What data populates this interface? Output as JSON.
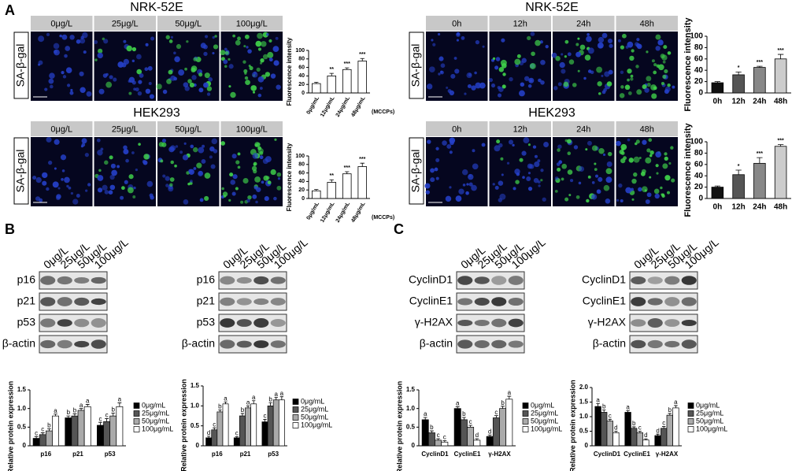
{
  "panel_labels": [
    "A",
    "B",
    "C"
  ],
  "fluorescence_panels": [
    {
      "title": "NRK-52E",
      "label": "SA-β-gal",
      "columns": [
        "0μg/L",
        "25μg/L",
        "50μg/L",
        "100μg/L"
      ]
    },
    {
      "title": "NRK-52E",
      "label": "SA-β-gal",
      "columns": [
        "0h",
        "12h",
        "24h",
        "48h"
      ]
    },
    {
      "title": "HEK293",
      "label": "SA-β-gal",
      "columns": [
        "0μg/L",
        "25μg/L",
        "50μg/L",
        "100μg/L"
      ]
    },
    {
      "title": "HEK293",
      "label": "SA-β-gal",
      "columns": [
        "0h",
        "12h",
        "24h",
        "48h"
      ]
    }
  ],
  "blots": [
    {
      "columns": [
        "0μg/L",
        "25μg/L",
        "50μg/L",
        "100μg/L"
      ],
      "rows": [
        "p16",
        "p21",
        "p53",
        "β-actin"
      ]
    },
    {
      "columns": [
        "0μg/L",
        "25μg/L",
        "50μg/L",
        "100μg/L"
      ],
      "rows": [
        "p16",
        "p21",
        "p53",
        "β-actin"
      ]
    },
    {
      "columns": [
        "0μg/L",
        "25μg/L",
        "50μg/L",
        "100μg/L"
      ],
      "rows": [
        "CyclinD1",
        "CyclinE1",
        "γ-H2AX",
        "β-actin"
      ]
    },
    {
      "columns": [
        "0μg/L",
        "25μg/L",
        "50μg/L",
        "100μg/L"
      ],
      "rows": [
        "CyclinD1",
        "CyclinE1",
        "γ-H2AX",
        "β-actin"
      ]
    }
  ],
  "chart_data": [
    {
      "type": "bar",
      "ylabel": "Fluorescence intensity",
      "xlabel": "(MCCPs)",
      "categories": [
        "0μg/mL",
        "12μg/mL",
        "24μg/mL",
        "48μg/mL"
      ],
      "values": [
        22,
        40,
        55,
        75
      ],
      "errors": [
        3,
        6,
        4,
        6
      ],
      "colors": [
        "#ffffff",
        "#ffffff",
        "#ffffff",
        "#ffffff"
      ],
      "significance": [
        null,
        "**",
        "***",
        "***"
      ],
      "ylim": [
        0,
        100
      ],
      "yticks": [
        0,
        20,
        40,
        60,
        80,
        100
      ]
    },
    {
      "type": "bar",
      "ylabel": "Fluorescence intensity",
      "categories": [
        "0h",
        "12h",
        "24h",
        "48h"
      ],
      "values": [
        18,
        32,
        45,
        60
      ],
      "errors": [
        2,
        5,
        2,
        8
      ],
      "colors": [
        "#111111",
        "#555555",
        "#888888",
        "#cccccc"
      ],
      "significance": [
        null,
        "*",
        "***",
        "***"
      ],
      "ylim": [
        0,
        100
      ],
      "yticks": [
        0,
        20,
        40,
        60,
        80,
        100
      ]
    },
    {
      "type": "bar",
      "ylabel": "Fluorescence intensity",
      "xlabel": "(MCCPs)",
      "categories": [
        "0μg/mL",
        "12μg/mL",
        "24μg/mL",
        "48μg/mL"
      ],
      "values": [
        18,
        38,
        58,
        75
      ],
      "errors": [
        3,
        6,
        5,
        8
      ],
      "colors": [
        "#ffffff",
        "#ffffff",
        "#ffffff",
        "#ffffff"
      ],
      "significance": [
        null,
        "**",
        "***",
        "***"
      ],
      "ylim": [
        0,
        100
      ],
      "yticks": [
        0,
        20,
        40,
        60,
        80,
        100
      ]
    },
    {
      "type": "bar",
      "ylabel": "Fluorescence intensity",
      "categories": [
        "0h",
        "12h",
        "24h",
        "48h"
      ],
      "values": [
        20,
        42,
        62,
        92
      ],
      "errors": [
        2,
        8,
        10,
        3
      ],
      "colors": [
        "#111111",
        "#555555",
        "#888888",
        "#cccccc"
      ],
      "significance": [
        null,
        "*",
        "***",
        "***"
      ],
      "ylim": [
        0,
        100
      ],
      "yticks": [
        0,
        20,
        40,
        60,
        80,
        100
      ]
    },
    {
      "type": "bar",
      "ylabel": "Relative protein expression",
      "legend": "right",
      "categories": [
        "p16",
        "p21",
        "p53"
      ],
      "ylim": [
        0,
        1.5
      ],
      "yticks": [
        0,
        0.5,
        {
          "value": 1,
          "label": "1.0"
        },
        1.5
      ],
      "series": [
        {
          "name": "0μg/mL",
          "color": "#000000",
          "values": [
            0.2,
            0.75,
            0.55
          ],
          "errors": [
            0.05,
            0.05,
            0.08
          ],
          "letters": [
            "c",
            "b",
            "c"
          ]
        },
        {
          "name": "25μg/mL",
          "color": "#555555",
          "values": [
            0.3,
            0.8,
            0.65
          ],
          "errors": [
            0.05,
            0.06,
            0.08
          ],
          "letters": [
            "c",
            "b",
            "c"
          ]
        },
        {
          "name": "50μg/mL",
          "color": "#aaaaaa",
          "values": [
            0.4,
            0.95,
            0.8
          ],
          "errors": [
            0.06,
            0.05,
            0.08
          ],
          "letters": [
            "b",
            "a",
            "b"
          ]
        },
        {
          "name": "100μg/mL",
          "color": "#ffffff",
          "values": [
            0.8,
            1.05,
            1.05
          ],
          "errors": [
            0.05,
            0.06,
            0.1
          ],
          "letters": [
            "a",
            "a",
            "a"
          ]
        }
      ]
    },
    {
      "type": "bar",
      "ylabel": "Relative protein expression",
      "legend": "right",
      "categories": [
        "p16",
        "p21",
        "p53"
      ],
      "ylim": [
        0,
        1.5
      ],
      "yticks": [
        0,
        0.5,
        {
          "value": 1,
          "label": "1.0"
        },
        1.5
      ],
      "series": [
        {
          "name": "0μg/mL",
          "color": "#000000",
          "values": [
            0.2,
            0.2,
            0.6
          ],
          "errors": [
            0.04,
            0.03,
            0.06
          ],
          "letters": [
            "d",
            "c",
            "c"
          ]
        },
        {
          "name": "25μg/mL",
          "color": "#555555",
          "values": [
            0.4,
            0.75,
            1.0
          ],
          "errors": [
            0.05,
            0.06,
            0.08
          ],
          "letters": [
            "c",
            "b",
            "b"
          ]
        },
        {
          "name": "50μg/mL",
          "color": "#aaaaaa",
          "values": [
            0.85,
            0.95,
            1.15
          ],
          "errors": [
            0.05,
            0.05,
            0.06
          ],
          "letters": [
            "b",
            "a",
            "a"
          ]
        },
        {
          "name": "100μg/mL",
          "color": "#ffffff",
          "values": [
            1.05,
            1.05,
            1.15
          ],
          "errors": [
            0.05,
            0.08,
            0.08
          ],
          "letters": [
            "a",
            "a",
            "a"
          ]
        }
      ]
    },
    {
      "type": "bar",
      "ylabel": "Relative protein expression",
      "legend": "right",
      "categories": [
        "CyclinD1",
        "CyclinE1",
        "γ-H2AX"
      ],
      "ylim": [
        0,
        1.5
      ],
      "yticks": [
        0,
        0.5,
        {
          "value": 1,
          "label": "1.0"
        },
        1.5
      ],
      "series": [
        {
          "name": "0μg/mL",
          "color": "#000000",
          "values": [
            0.7,
            1.0,
            0.25
          ],
          "errors": [
            0.06,
            0.05,
            0.04
          ],
          "letters": [
            "a",
            "a",
            "d"
          ]
        },
        {
          "name": "25μg/mL",
          "color": "#555555",
          "values": [
            0.35,
            0.7,
            0.75
          ],
          "errors": [
            0.05,
            0.06,
            0.06
          ],
          "letters": [
            "b",
            "b",
            "c"
          ]
        },
        {
          "name": "50μg/mL",
          "color": "#aaaaaa",
          "values": [
            0.15,
            0.5,
            1.0
          ],
          "errors": [
            0.04,
            0.05,
            0.06
          ],
          "letters": [
            "c",
            "c",
            "b"
          ]
        },
        {
          "name": "100μg/mL",
          "color": "#ffffff",
          "values": [
            0.1,
            0.15,
            1.25
          ],
          "errors": [
            0.04,
            0.04,
            0.08
          ],
          "letters": [
            "c",
            "d",
            "a"
          ]
        }
      ]
    },
    {
      "type": "bar",
      "ylabel": "Relative protein expression",
      "legend": "right",
      "categories": [
        "CyclinD1",
        "CyclinE1",
        "γ-H2AX"
      ],
      "ylim": [
        0,
        2.0
      ],
      "yticks": [
        0,
        0.5,
        {
          "value": 1,
          "label": "1.0"
        },
        1.5,
        {
          "value": 2,
          "label": "2.0"
        }
      ],
      "series": [
        {
          "name": "0μg/mL",
          "color": "#000000",
          "values": [
            1.35,
            1.15,
            0.35
          ],
          "errors": [
            0.1,
            0.06,
            0.05
          ],
          "letters": [
            "a",
            "a",
            "d"
          ]
        },
        {
          "name": "25μg/mL",
          "color": "#555555",
          "values": [
            1.15,
            0.6,
            0.6
          ],
          "errors": [
            0.08,
            0.05,
            0.06
          ],
          "letters": [
            "b",
            "b",
            "c"
          ]
        },
        {
          "name": "50μg/mL",
          "color": "#aaaaaa",
          "values": [
            0.85,
            0.45,
            1.05
          ],
          "errors": [
            0.06,
            0.05,
            0.06
          ],
          "letters": [
            "c",
            "c",
            "b"
          ]
        },
        {
          "name": "100μg/mL",
          "color": "#ffffff",
          "values": [
            0.45,
            0.2,
            1.3
          ],
          "errors": [
            0.05,
            0.04,
            0.08
          ],
          "letters": [
            "d",
            "d",
            "a"
          ]
        }
      ]
    }
  ]
}
